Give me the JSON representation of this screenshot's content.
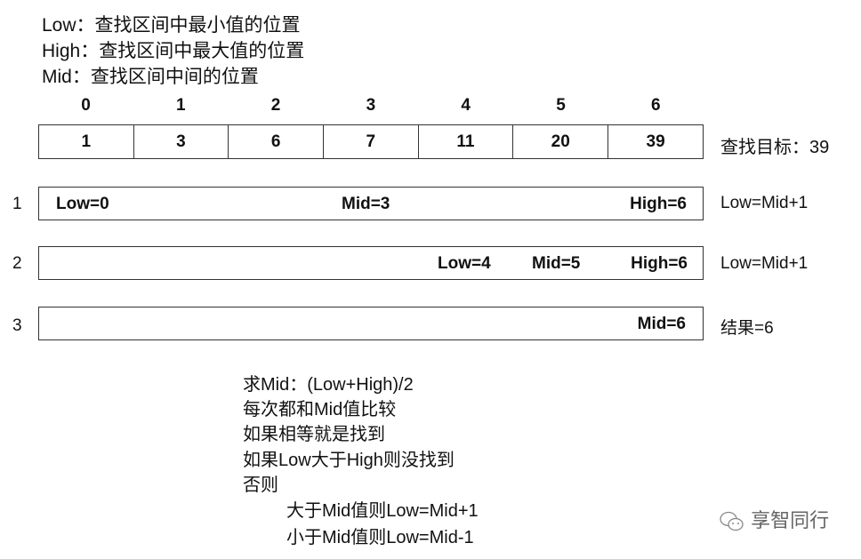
{
  "definitions": [
    "Low：查找区间中最小值的位置",
    "High：查找区间中最大值的位置",
    "Mid：查找区间中间的位置"
  ],
  "indices": [
    "0",
    "1",
    "2",
    "3",
    "4",
    "5",
    "6"
  ],
  "values": [
    "1",
    "3",
    "6",
    "7",
    "11",
    "20",
    "39"
  ],
  "target": "查找目标：39",
  "steps": [
    {
      "num": "1",
      "low": "Low=0",
      "mid": "Mid=3",
      "high": "High=6",
      "action": "Low=Mid+1"
    },
    {
      "num": "2",
      "low": "Low=4",
      "mid": "Mid=5",
      "high": "High=6",
      "action": "Low=Mid+1"
    },
    {
      "num": "3",
      "mid": "Mid=6",
      "action": "结果=6"
    }
  ],
  "notes": [
    "求Mid：(Low+High)/2",
    "每次都和Mid值比较",
    "如果相等就是找到",
    "如果Low大于High则没找到",
    "否则",
    "大于Mid值则Low=Mid+1",
    "小于Mid值则Low=Mid-1"
  ],
  "watermark": "享智同行"
}
